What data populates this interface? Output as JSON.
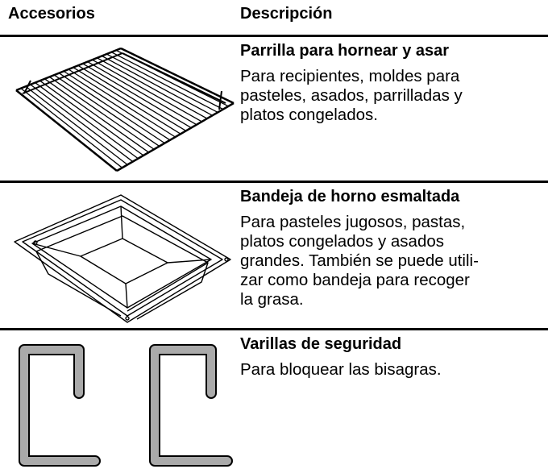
{
  "table": {
    "headers": [
      "Accesorios",
      "Descripción"
    ],
    "rows": [
      {
        "title": "Parrilla para hornear y asar",
        "description": [
          "Para recipientes, moldes para",
          "pasteles, asados, parrilladas y",
          "platos congelados."
        ]
      },
      {
        "title": "Bandeja de horno esmaltada",
        "description": [
          "Para pasteles jugosos, pastas,",
          "platos congelados y asados",
          "grandes. También se puede utili-",
          "zar como bandeja para recoger",
          "la grasa."
        ]
      },
      {
        "title": "Varillas de seguridad",
        "description": [
          "Para bloquear las bisagras."
        ]
      }
    ]
  }
}
